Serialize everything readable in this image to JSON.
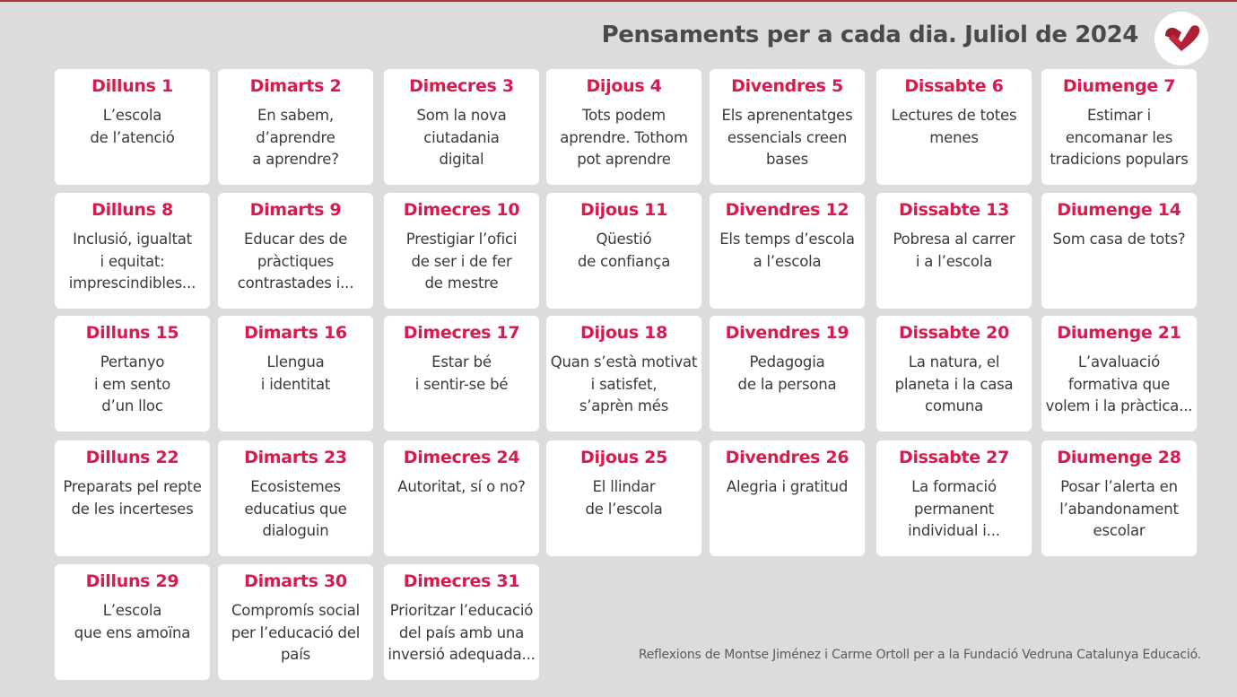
{
  "header": {
    "title": "Pensaments per a cada dia. Juliol de 2024"
  },
  "logo": {
    "icon": "vedruna-heart-logo-icon",
    "color": "#b02035"
  },
  "colors": {
    "accent": "#d81b4e",
    "background": "#dcdcdc",
    "card": "#ffffff"
  },
  "days": [
    {
      "day": "Dilluns 1",
      "text": "L’escola\nde l’atenció"
    },
    {
      "day": "Dimarts 2",
      "text": "En sabem,\nd’aprendre\na aprendre?"
    },
    {
      "day": "Dimecres 3",
      "text": "Som la nova\nciutadania\ndigital"
    },
    {
      "day": "Dijous 4",
      "text": "Tots podem\naprendre. Tothom\npot aprendre"
    },
    {
      "day": "Divendres 5",
      "text": "Els aprenentatges\nessencials creen\nbases"
    },
    {
      "day": "Dissabte 6",
      "text": "Lectures de totes\nmenes"
    },
    {
      "day": "Diumenge 7",
      "text": "Estimar i\nencomanar les\ntradicions populars"
    },
    {
      "day": "Dilluns 8",
      "text": "Inclusió, igualtat\ni equitat:\nimprescindibles..."
    },
    {
      "day": "Dimarts 9",
      "text": "Educar des de\npràctiques\ncontrastades i..."
    },
    {
      "day": "Dimecres 10",
      "text": "Prestigiar l’ofici\nde ser i de fer\nde mestre"
    },
    {
      "day": "Dijous 11",
      "text": "Qüestió\nde confiança"
    },
    {
      "day": "Divendres 12",
      "text": "Els temps d’escola\na l’escola"
    },
    {
      "day": "Dissabte 13",
      "text": "Pobresa al carrer\ni a l’escola"
    },
    {
      "day": "Diumenge 14",
      "text": "Som casa de tots?"
    },
    {
      "day": "Dilluns 15",
      "text": "Pertanyo\ni em sento\nd’un lloc"
    },
    {
      "day": "Dimarts 16",
      "text": "Llengua\ni identitat"
    },
    {
      "day": "Dimecres 17",
      "text": "Estar bé\ni sentir-se bé"
    },
    {
      "day": "Dijous 18",
      "text": "Quan s’està motivat\ni satisfet,\ns’aprèn més"
    },
    {
      "day": "Divendres 19",
      "text": "Pedagogia\nde la persona"
    },
    {
      "day": "Dissabte 20",
      "text": "La natura, el\nplaneta i la casa\ncomuna"
    },
    {
      "day": "Diumenge 21",
      "text": "L’avaluació\nformativa que\nvolem i la pràctica..."
    },
    {
      "day": "Dilluns 22",
      "text": "Preparats pel repte\nde les incerteses"
    },
    {
      "day": "Dimarts 23",
      "text": "Ecosistemes\neducatius que\ndialoguin"
    },
    {
      "day": "Dimecres 24",
      "text": "Autoritat, sí o no?"
    },
    {
      "day": "Dijous 25",
      "text": "El llindar\nde l’escola"
    },
    {
      "day": "Divendres 26",
      "text": "Alegria i gratitud"
    },
    {
      "day": "Dissabte 27",
      "text": "La formació\npermanent\nindividual i..."
    },
    {
      "day": "Diumenge 28",
      "text": "Posar l’alerta en\nl’abandonament\nescolar"
    },
    {
      "day": "Dilluns 29",
      "text": "L’escola\nque ens amoïna"
    },
    {
      "day": "Dimarts 30",
      "text": "Compromís social\nper l’educació del\npaís"
    },
    {
      "day": "Dimecres 31",
      "text": "Prioritzar l’educació\ndel país amb una\ninversió adequada..."
    }
  ],
  "footer": {
    "credit": "Reflexions de Montse Jiménez i Carme Ortoll per a la Fundació Vedruna Catalunya Educació."
  }
}
